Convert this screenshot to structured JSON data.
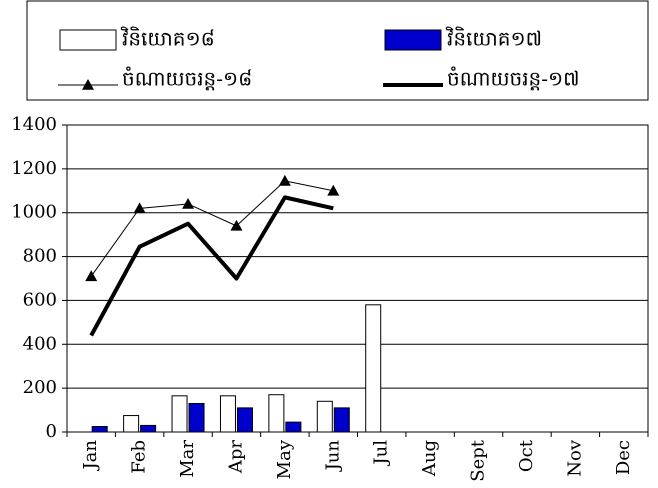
{
  "chart_data": {
    "type": "combo",
    "categories": [
      "Jan",
      "Feb",
      "Mar",
      "Apr",
      "May",
      "Jun",
      "Jul",
      "Aug",
      "Sept",
      "Oct",
      "Nov",
      "Dec"
    ],
    "series": [
      {
        "name": "វិនិយោគ១៨",
        "type": "bar",
        "color": "#ffffff",
        "values": [
          null,
          75,
          165,
          165,
          170,
          140,
          580,
          null,
          null,
          null,
          null,
          null
        ]
      },
      {
        "name": "វិនិយោគ១៧",
        "type": "bar",
        "color": "#0000cc",
        "values": [
          25,
          30,
          130,
          110,
          45,
          110,
          null,
          null,
          null,
          null,
          null,
          null
        ]
      },
      {
        "name": "ចំណាយចរន្ត-១៨",
        "type": "line",
        "color": "#000000",
        "marker": "triangle",
        "line_width": 1,
        "values": [
          710,
          1020,
          1040,
          940,
          1145,
          1100,
          null,
          null,
          null,
          null,
          null,
          null
        ]
      },
      {
        "name": "ចំណាយចរន្ត-១៧",
        "type": "line",
        "color": "#000000",
        "line_width": 4,
        "values": [
          440,
          845,
          950,
          700,
          1070,
          1020,
          null,
          null,
          null,
          null,
          null,
          null
        ]
      }
    ],
    "ylim": [
      0,
      1400
    ],
    "yticks": [
      0,
      200,
      400,
      600,
      800,
      1000,
      1200,
      1400
    ],
    "grid": true
  }
}
